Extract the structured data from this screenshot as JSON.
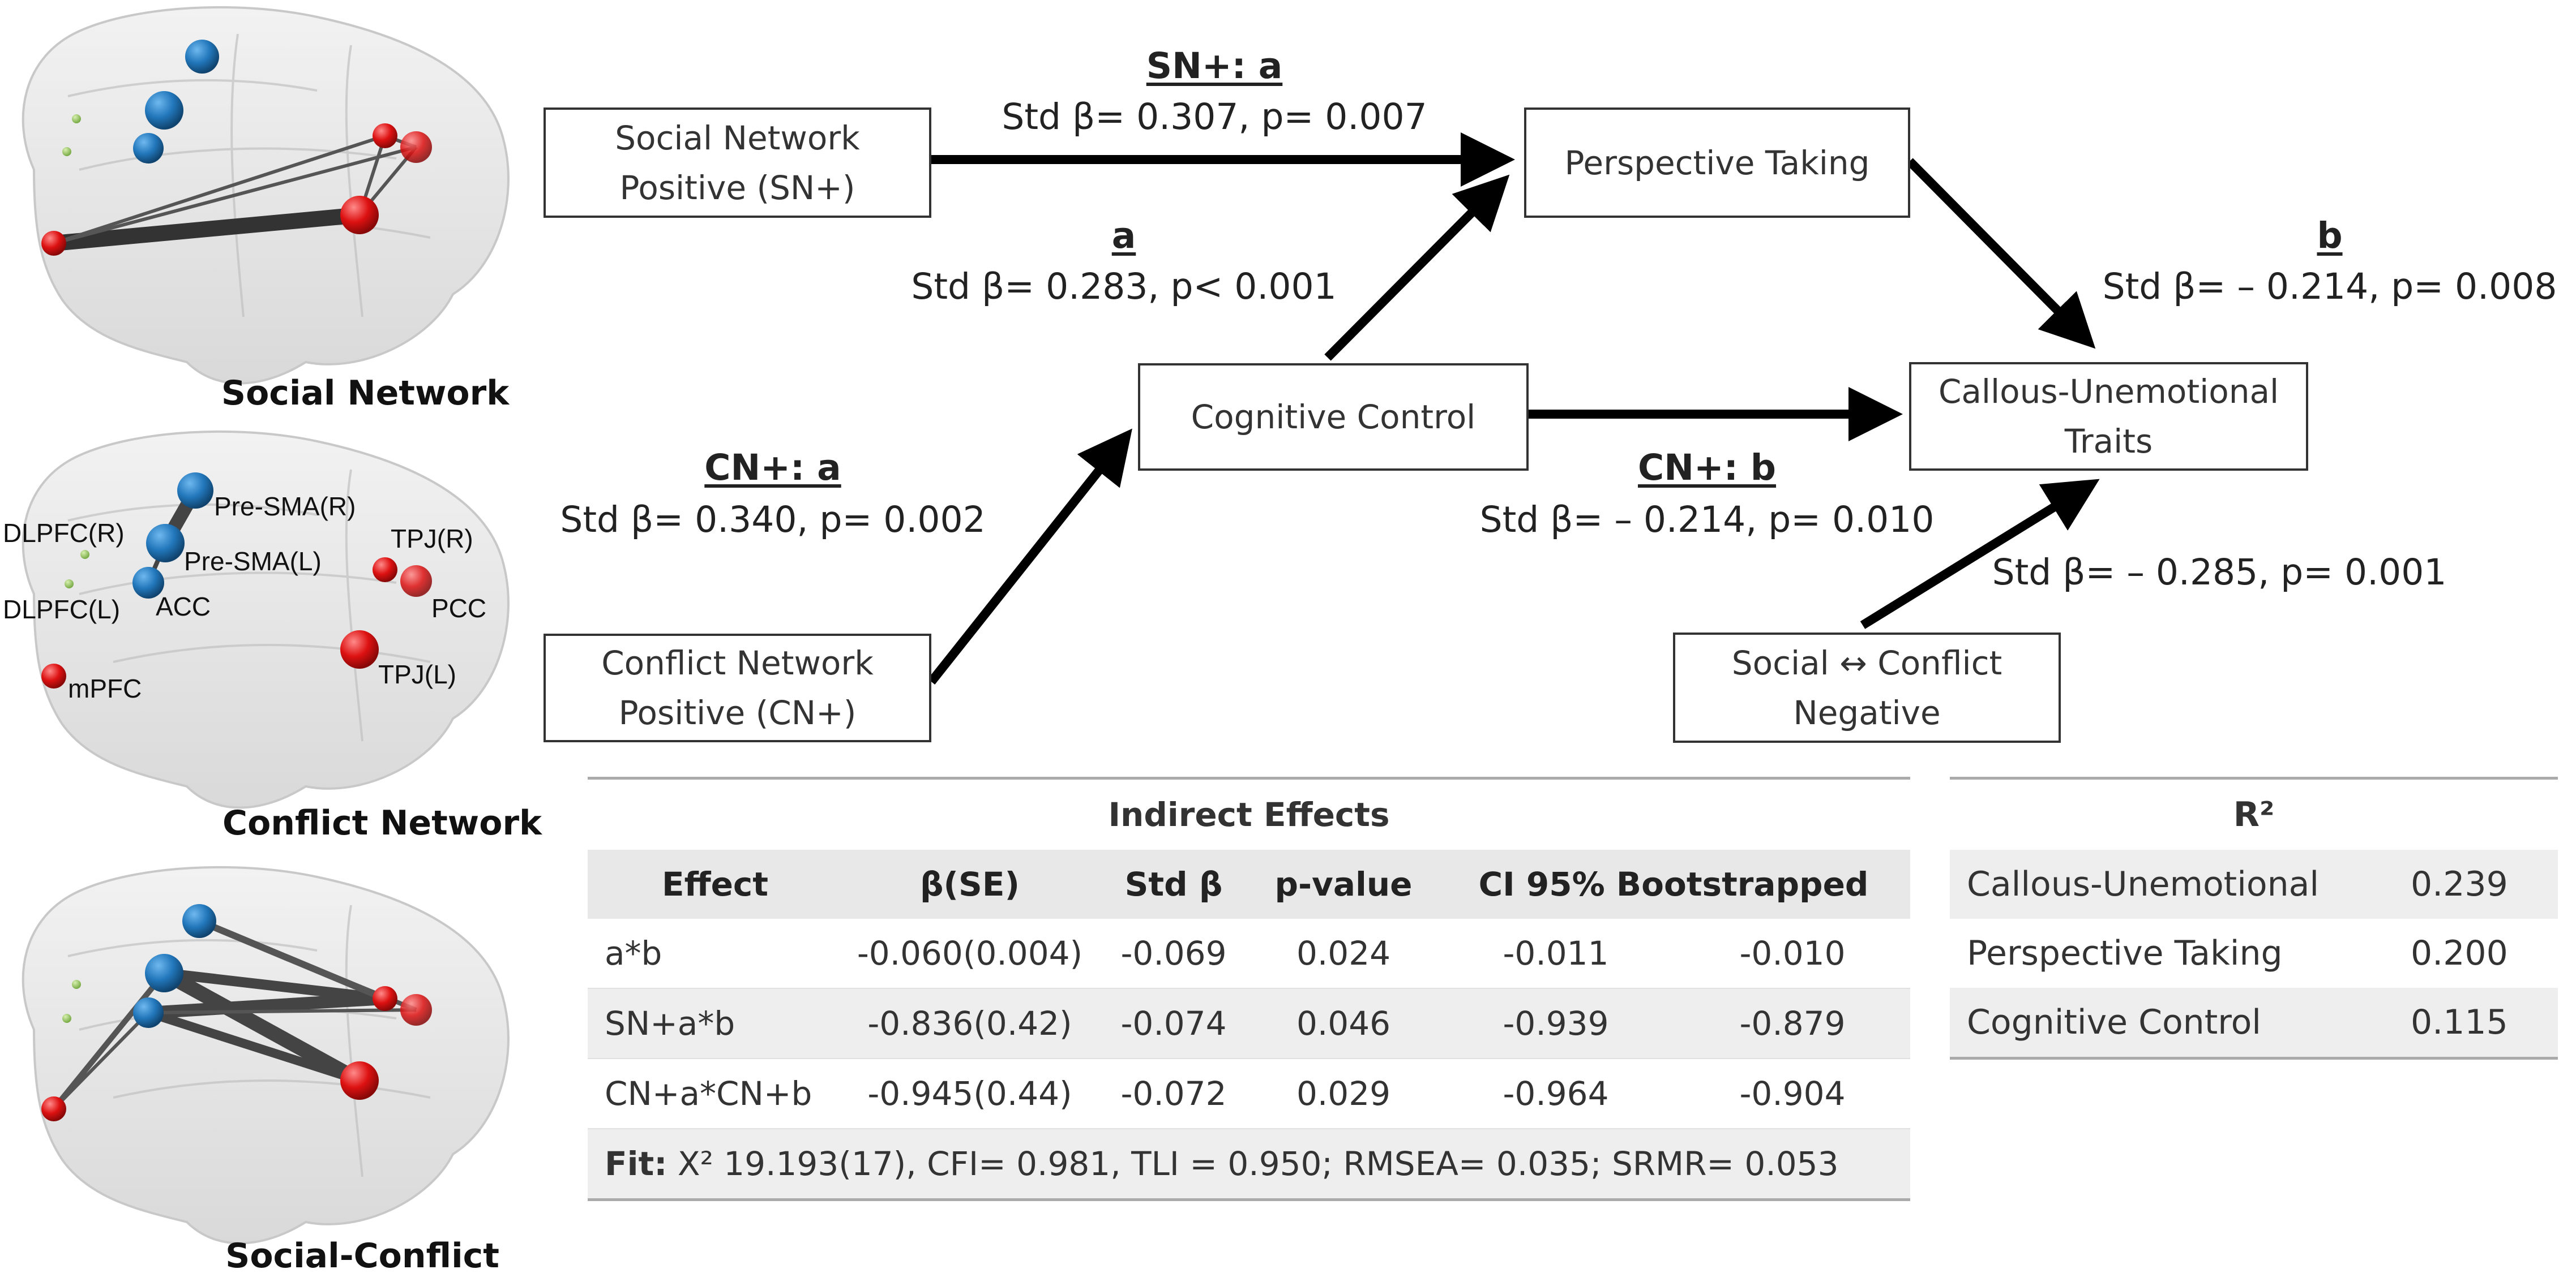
{
  "brains": {
    "social_caption": "Social Network",
    "conflict_caption": "Conflict Network",
    "social_conflict_caption": "Social-Conflict",
    "regions": {
      "dlpfc_r": "DLPFC(R)",
      "dlpfc_l": "DLPFC(L)",
      "presma_r": "Pre-SMA(R)",
      "presma_l": "Pre-SMA(L)",
      "acc": "ACC",
      "tpj_r": "TPJ(R)",
      "pcc": "PCC",
      "tpj_l": "TPJ(L)",
      "mpfc": "mPFC"
    }
  },
  "nodes": {
    "sn": [
      "Social Network",
      "Positive (SN+)"
    ],
    "cn": [
      "Conflict Network",
      "Positive (CN+)"
    ],
    "cc": "Cognitive Control",
    "pt": "Perspective Taking",
    "cu": [
      "Callous-Unemotional",
      "Traits"
    ],
    "scn": [
      "Social ↔ Conflict",
      "Negative"
    ]
  },
  "paths": {
    "sn_a_head": "SN+: a",
    "sn_a_stats": "Std β= 0.307, p= 0.007",
    "a_head": "a",
    "a_stats": "Std β= 0.283, p< 0.001",
    "cn_a_head": "CN+: a",
    "cn_a_stats": "Std β= 0.340, p= 0.002",
    "b_head": "b",
    "b_stats": "Std β= – 0.214, p= 0.008",
    "cn_b_head": "CN+: b",
    "cn_b_stats": "Std β= – 0.214, p= 0.010",
    "scn_stats": "Std β= – 0.285, p= 0.001"
  },
  "indirect": {
    "title": "Indirect Effects",
    "headers": [
      "Effect",
      "β(SE)",
      "Std β",
      "p-value",
      "CI 95% Bootstrapped"
    ],
    "rows": [
      [
        "a*b",
        "-0.060(0.004)",
        "-0.069",
        "0.024",
        "-0.011",
        "-0.010"
      ],
      [
        "SN+a*b",
        "-0.836(0.42)",
        "-0.074",
        "0.046",
        "-0.939",
        "-0.879"
      ],
      [
        "CN+a*CN+b",
        "-0.945(0.44)",
        "-0.072",
        "0.029",
        "-0.964",
        "-0.904"
      ]
    ],
    "fit_label": "Fit:",
    "fit_text": " X² 19.193(17), CFI= 0.981, TLI = 0.950; RMSEA= 0.035; SRMR= 0.053"
  },
  "r2": {
    "title": "R²",
    "rows": [
      [
        "Callous-Unemotional",
        "0.239"
      ],
      [
        "Perspective Taking",
        "0.200"
      ],
      [
        "Cognitive Control",
        "0.115"
      ]
    ]
  },
  "colors": {
    "blue_node": "#2277bb",
    "red_node": "#dd1111",
    "green_node": "#88bb55"
  }
}
